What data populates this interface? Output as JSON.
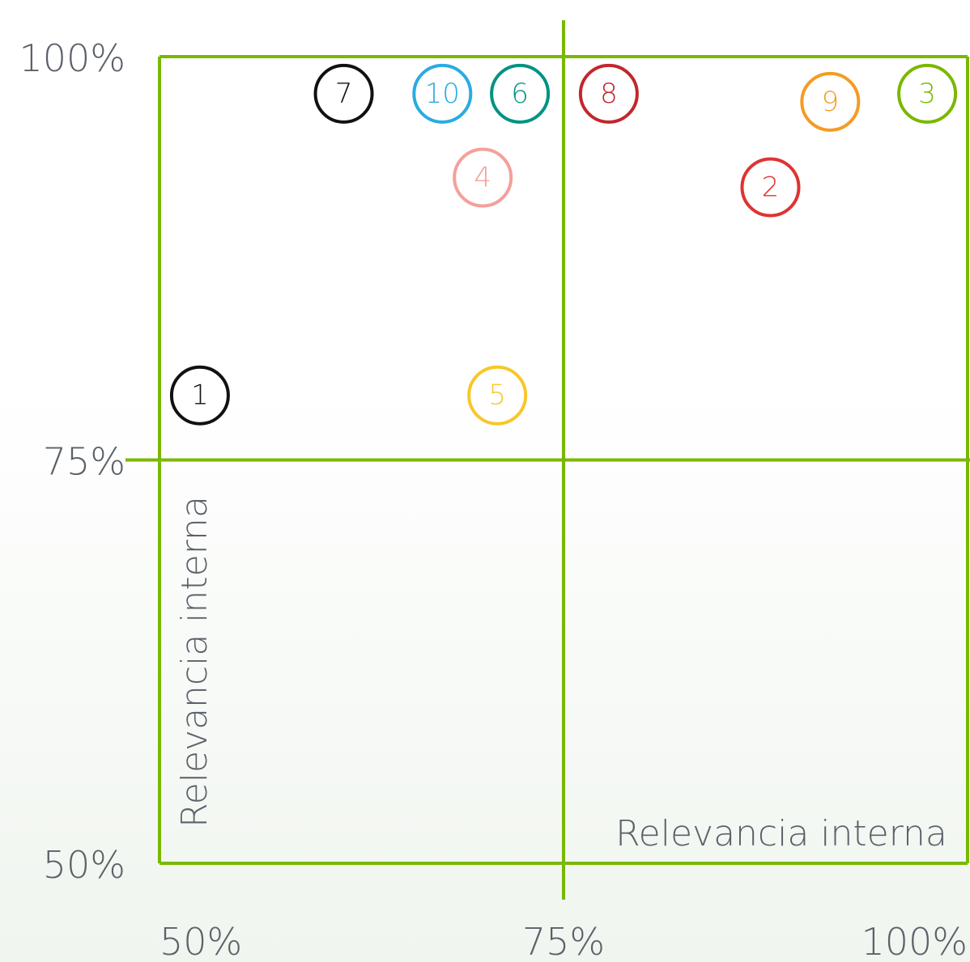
{
  "chart_data": {
    "type": "scatter",
    "xlabel": "Relevancia interna",
    "ylabel": "Relevancia interna",
    "x": [
      52.5,
      87.8,
      97.5,
      70.0,
      70.9,
      72.3,
      61.4,
      77.8,
      91.5,
      67.5
    ],
    "values": [
      79.0,
      91.9,
      97.7,
      92.5,
      79.0,
      97.7,
      97.7,
      97.7,
      97.2,
      97.7
    ],
    "labels": [
      "1",
      "2",
      "3",
      "4",
      "5",
      "6",
      "7",
      "8",
      "9",
      "10"
    ],
    "colors": [
      "#111111",
      "#e03232",
      "#7ab800",
      "#f4a09a",
      "#f7c72a",
      "#009383",
      "#111111",
      "#c1272d",
      "#f39c23",
      "#29abe2"
    ],
    "xlim": [
      50,
      100
    ],
    "ylim": [
      50,
      100
    ],
    "xticks": [
      {
        "value": 50,
        "label": "50%"
      },
      {
        "value": 75,
        "label": "75%"
      },
      {
        "value": 100,
        "label": "100%"
      }
    ],
    "yticks": [
      {
        "value": 50,
        "label": "50%"
      },
      {
        "value": 75,
        "label": "75%"
      },
      {
        "value": 100,
        "label": "100%"
      }
    ],
    "grid": true,
    "grid_color": "#7ab800"
  }
}
